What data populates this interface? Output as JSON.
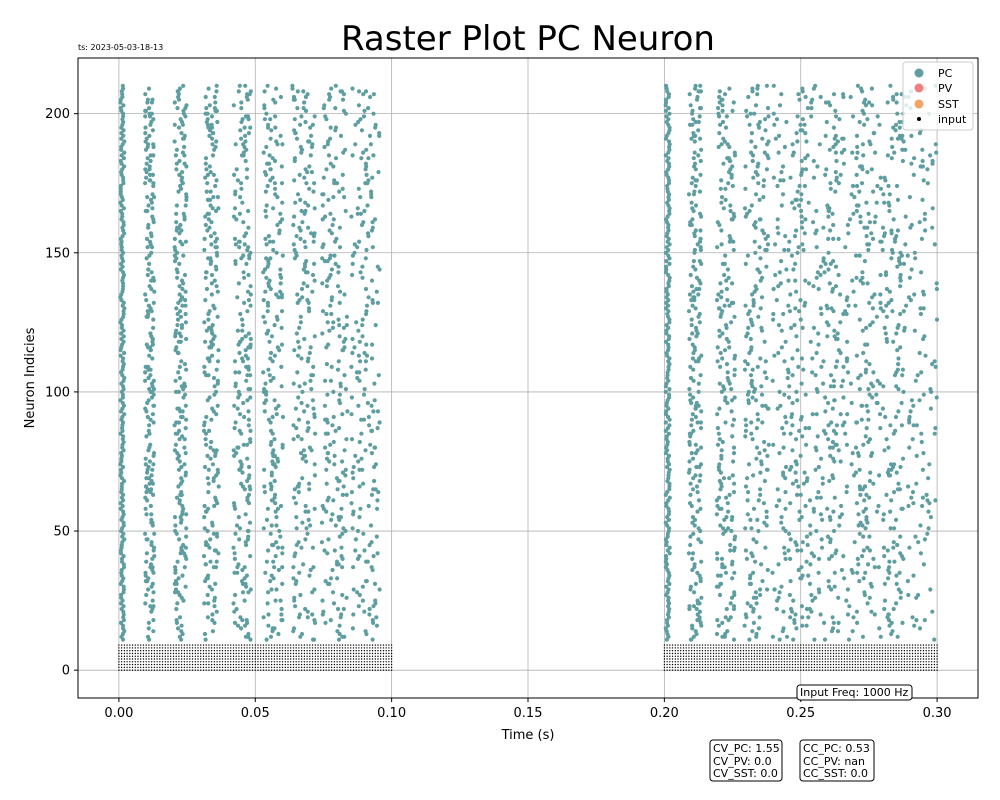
{
  "timestamp": "ts: 2023-05-03-18-13",
  "chart_data": {
    "type": "scatter",
    "title": "Raster Plot PC Neuron",
    "xlabel": "Time (s)",
    "ylabel": "Neuron Indicies",
    "xlim": [
      -0.015,
      0.315
    ],
    "ylim": [
      -10,
      220
    ],
    "xticks": [
      0.0,
      0.05,
      0.1,
      0.15,
      0.2,
      0.25,
      0.3
    ],
    "xtick_labels": [
      "0.00",
      "0.05",
      "0.10",
      "0.15",
      "0.20",
      "0.25",
      "0.30"
    ],
    "yticks": [
      0,
      50,
      100,
      150,
      200
    ],
    "ytick_labels": [
      "0",
      "50",
      "100",
      "150",
      "200"
    ],
    "grid": true,
    "legend_position": "top-right",
    "series": [
      {
        "name": "PC",
        "color": "#5f9ea0",
        "neuron_range": [
          11,
          210
        ],
        "stimulus_windows": [
          [
            0.0,
            0.1
          ],
          [
            0.2,
            0.3
          ]
        ]
      },
      {
        "name": "PV",
        "color": "#f08080"
      },
      {
        "name": "SST",
        "color": "#f4a460"
      },
      {
        "name": "input",
        "color": "#000000",
        "neuron_range": [
          0,
          9
        ],
        "frequency_hz": 1000,
        "stimulus_windows": [
          [
            0.0,
            0.1
          ],
          [
            0.2,
            0.3
          ]
        ]
      }
    ],
    "annotations": {
      "input_freq": "Input Freq: 1000 Hz",
      "cv": [
        "CV_PC: 1.55",
        "CV_PV: 0.0",
        "CV_SST: 0.0"
      ],
      "cc": [
        "CC_PC: 0.53",
        "CC_PV: nan",
        "CC_SST: 0.0"
      ]
    }
  }
}
